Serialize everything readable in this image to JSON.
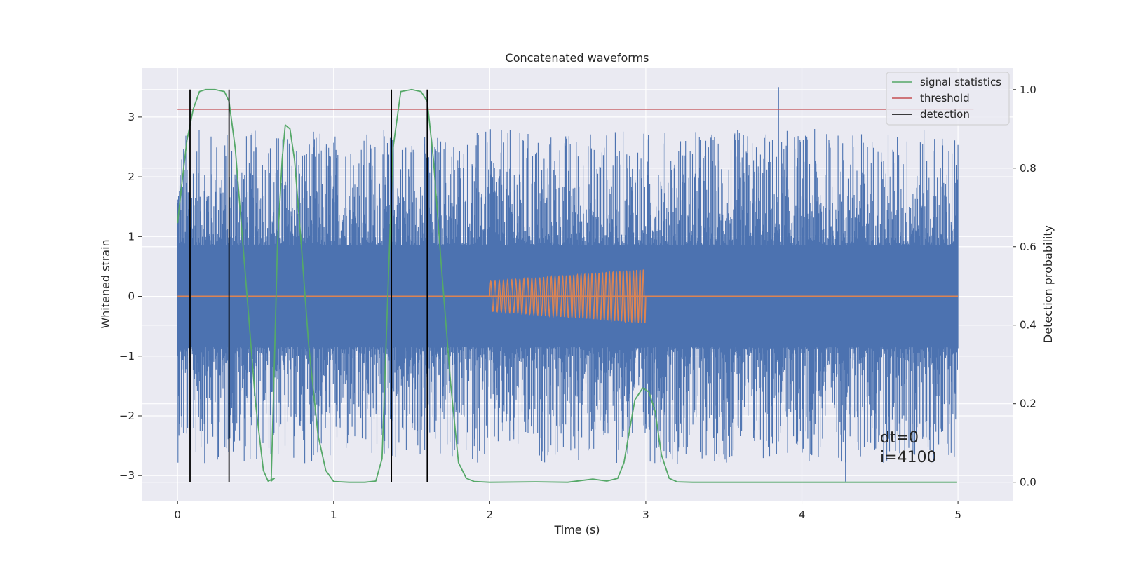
{
  "chart_data": {
    "type": "line",
    "title": "Concatenated waveforms",
    "xlabel": "Time (s)",
    "ylabel": "Whitened strain",
    "ylabel_right": "Detection probability",
    "xlim": [
      -0.23,
      5.35
    ],
    "ylim": [
      -3.42,
      3.82
    ],
    "ylim_right": [
      -0.047,
      1.055
    ],
    "x_ticks": [
      0,
      1,
      2,
      3,
      4,
      5
    ],
    "y_ticks": [
      -3,
      -2,
      -1,
      0,
      1,
      2,
      3
    ],
    "y_ticks_right": [
      0.0,
      0.2,
      0.4,
      0.6,
      0.8,
      1.0
    ],
    "grid": true,
    "legend_position": "top-right",
    "colors": {
      "background": "#eaeaf2",
      "grid": "#ffffff",
      "strain": "#4c72b0",
      "template": "#dd8452",
      "signal_statistics": "#55a868",
      "threshold": "#c44e52",
      "detection": "#000000"
    },
    "series": [
      {
        "key": "strain",
        "axis": "left",
        "x_range": [
          0,
          5
        ],
        "core_amplitude": 0.85,
        "typical_peak": 2.2,
        "max_value": 3.5,
        "min_value": -3.1
      },
      {
        "key": "template",
        "axis": "left",
        "x_range": [
          0,
          5
        ],
        "chirp_start": 2.0,
        "chirp_end": 3.0,
        "amplitude_start": 0.25,
        "amplitude_end": 0.45,
        "cycles": 42
      },
      {
        "name": "signal statistics",
        "axis": "right",
        "x": [
          0.0,
          0.03,
          0.06,
          0.1,
          0.14,
          0.18,
          0.24,
          0.3,
          0.33,
          0.37,
          0.4,
          0.45,
          0.5,
          0.55,
          0.58,
          0.62,
          0.6,
          0.62,
          0.64,
          0.67,
          0.69,
          0.72,
          0.75,
          0.79,
          0.84,
          0.9,
          0.95,
          1.0,
          1.1,
          1.2,
          1.27,
          1.31,
          1.34,
          1.38,
          1.43,
          1.5,
          1.56,
          1.6,
          1.64,
          1.69,
          1.75,
          1.8,
          1.85,
          1.9,
          2.0,
          2.3,
          2.5,
          2.66,
          2.75,
          2.82,
          2.86,
          2.89,
          2.93,
          2.98,
          3.02,
          3.06,
          3.1,
          3.15,
          3.2,
          3.3,
          4.0,
          4.99
        ],
        "values": [
          0.66,
          0.77,
          0.87,
          0.95,
          0.995,
          1.0,
          1.0,
          0.995,
          0.97,
          0.85,
          0.7,
          0.45,
          0.2,
          0.03,
          0.003,
          0.01,
          0.003,
          0.3,
          0.6,
          0.82,
          0.91,
          0.9,
          0.82,
          0.62,
          0.35,
          0.12,
          0.03,
          0.002,
          0.0,
          0.0,
          0.003,
          0.06,
          0.4,
          0.85,
          0.995,
          1.0,
          0.995,
          0.97,
          0.82,
          0.55,
          0.25,
          0.05,
          0.01,
          0.002,
          0.0,
          0.001,
          0.0,
          0.008,
          0.003,
          0.01,
          0.05,
          0.12,
          0.21,
          0.24,
          0.23,
          0.18,
          0.07,
          0.01,
          0.001,
          0.0,
          0.0,
          0.0
        ]
      },
      {
        "name": "threshold",
        "axis": "right",
        "x": [
          0.0,
          5.1
        ],
        "values": [
          0.95,
          0.95
        ]
      },
      {
        "name": "detection",
        "axis": "right",
        "x": [
          0.08,
          0.33,
          1.37,
          1.6
        ],
        "range": [
          0.0,
          1.0
        ]
      }
    ],
    "annotation": [
      "dt=0",
      "i=4100"
    ]
  }
}
